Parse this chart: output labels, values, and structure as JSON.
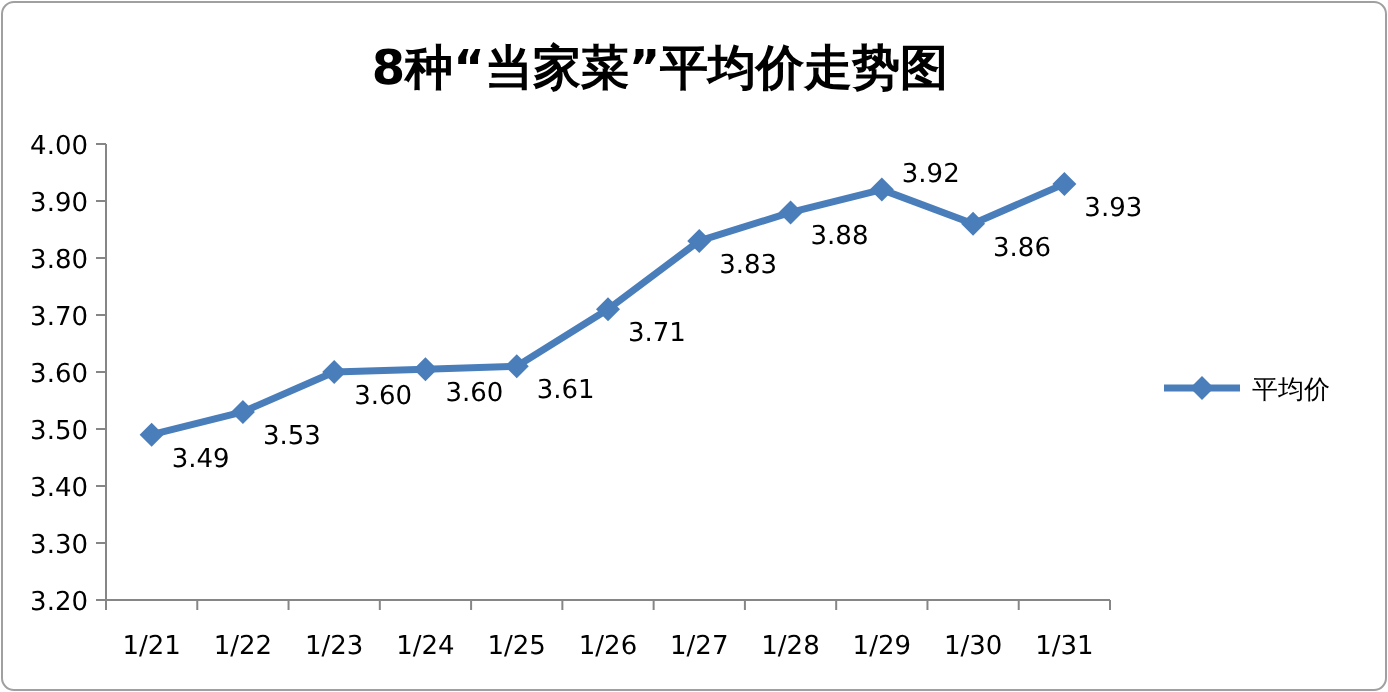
{
  "chart_data": {
    "type": "line",
    "title": "8种“当家菜”平均价走势图",
    "categories": [
      "1/21",
      "1/22",
      "1/23",
      "1/24",
      "1/25",
      "1/26",
      "1/27",
      "1/28",
      "1/29",
      "1/30",
      "1/31"
    ],
    "series": [
      {
        "name": "平均价",
        "color": "#4a7ebb",
        "values": [
          3.49,
          3.53,
          3.6,
          3.605,
          3.61,
          3.71,
          3.83,
          3.88,
          3.92,
          3.86,
          3.93
        ],
        "value_labels": [
          "3.49",
          "3.53",
          "3.60",
          "3.60",
          "3.61",
          "3.71",
          "3.83",
          "3.88",
          "3.92",
          "3.86",
          "3.93"
        ]
      }
    ],
    "ylim": [
      3.2,
      4.0
    ],
    "yticks": [
      {
        "value": 3.2,
        "label": "3.20"
      },
      {
        "value": 3.3,
        "label": "3.30"
      },
      {
        "value": 3.4,
        "label": "3.40"
      },
      {
        "value": 3.5,
        "label": "3.50"
      },
      {
        "value": 3.6,
        "label": "3.60"
      },
      {
        "value": 3.7,
        "label": "3.70"
      },
      {
        "value": 3.8,
        "label": "3.80"
      },
      {
        "value": 3.9,
        "label": "3.90"
      },
      {
        "value": 4.0,
        "label": "4.00"
      }
    ],
    "legend": "right",
    "marker": "diamond",
    "line_style": "solid"
  }
}
